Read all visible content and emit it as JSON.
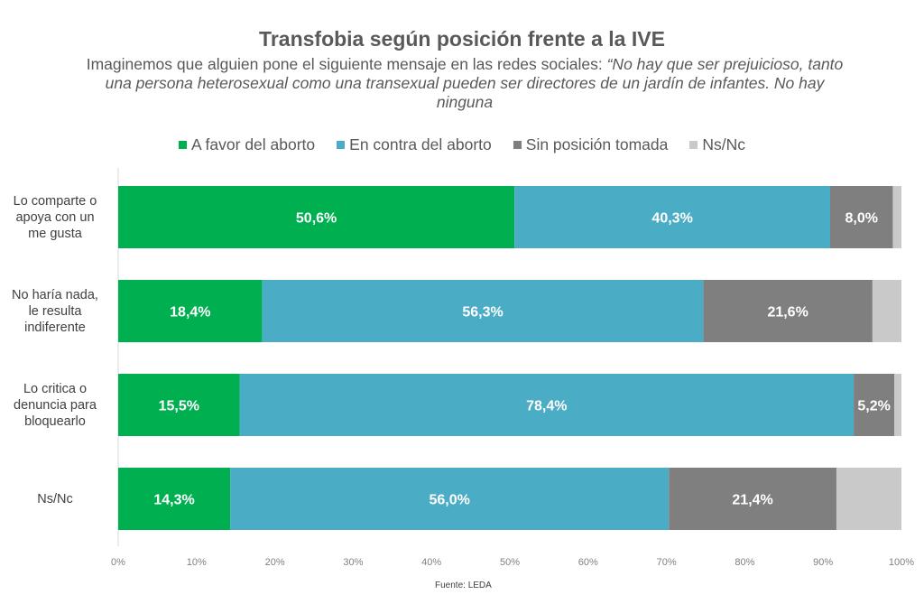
{
  "chart_data": {
    "type": "bar",
    "orientation": "horizontal",
    "stacked": "percent",
    "title": "Transfobia según posición frente a la IVE",
    "subtitle_plain": "Imaginemos  que alguien pone el siguiente mensaje en las redes sociales: ",
    "subtitle_quote": "“No hay que ser prejuicioso, tanto una persona heterosexual como una transexual pueden ser directores de un jardín de infantes. No hay ninguna",
    "categories": [
      [
        "Lo comparte o",
        "apoya con un",
        "me gusta"
      ],
      [
        "No haría nada,",
        "le resulta",
        "indiferente"
      ],
      [
        "Lo critica o",
        "denuncia para",
        "bloquearlo"
      ],
      [
        "Ns/Nc"
      ]
    ],
    "series": [
      {
        "name": "A favor del aborto",
        "color": "#00b050",
        "values": [
          50.6,
          18.4,
          15.5,
          14.3
        ],
        "labels": [
          "50,6%",
          "18,4%",
          "15,5%",
          "14,3%"
        ]
      },
      {
        "name": "En contra del aborto",
        "color": "#4bacc6",
        "values": [
          40.3,
          56.3,
          78.4,
          56.0
        ],
        "labels": [
          "40,3%",
          "56,3%",
          "78,4%",
          "56,0%"
        ]
      },
      {
        "name": "Sin posición tomada",
        "color": "#7f7f7f",
        "values": [
          8.0,
          21.6,
          5.2,
          21.4
        ],
        "labels": [
          "8,0%",
          "21,6%",
          "5,2%",
          "21,4%"
        ]
      },
      {
        "name": "Ns/Nc",
        "color": "#c9c9c9",
        "values": [
          1.1,
          3.7,
          0.9,
          8.3
        ],
        "labels": [
          "",
          "",
          "",
          ""
        ]
      }
    ],
    "xlim": [
      0,
      100
    ],
    "xticks": [
      "0%",
      "10%",
      "20%",
      "30%",
      "40%",
      "50%",
      "60%",
      "70%",
      "80%",
      "90%",
      "100%"
    ],
    "legend_position": "top",
    "grid": false
  },
  "source": "Fuente: LEDA"
}
